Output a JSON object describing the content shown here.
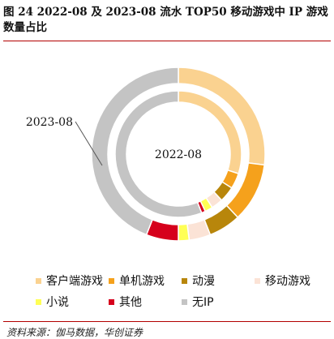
{
  "title": "图 24 2022-08 及 2023-08 流水 TOP50 移动游戏中 IP 游戏数量占比",
  "source": "资料来源：伽马数据，华创证券",
  "chart_data": {
    "type": "pie",
    "subtype": "nested-donut",
    "categories": [
      "客户端游戏",
      "单机游戏",
      "动漫",
      "移动游戏",
      "小说",
      "其他",
      "无IP"
    ],
    "colors": [
      "#FAD290",
      "#F5A11C",
      "#B8860B",
      "#FBE3D6",
      "#FFFF55",
      "#D6001C",
      "#C4C4C4"
    ],
    "series": [
      {
        "name": "2022-08",
        "ring": "inner",
        "values": [
          30,
          4,
          4,
          3,
          2,
          1,
          56
        ]
      },
      {
        "name": "2023-08",
        "ring": "outer",
        "values": [
          27,
          11,
          6,
          4,
          2,
          6,
          44
        ]
      }
    ],
    "legend": {
      "position": "bottom"
    }
  }
}
